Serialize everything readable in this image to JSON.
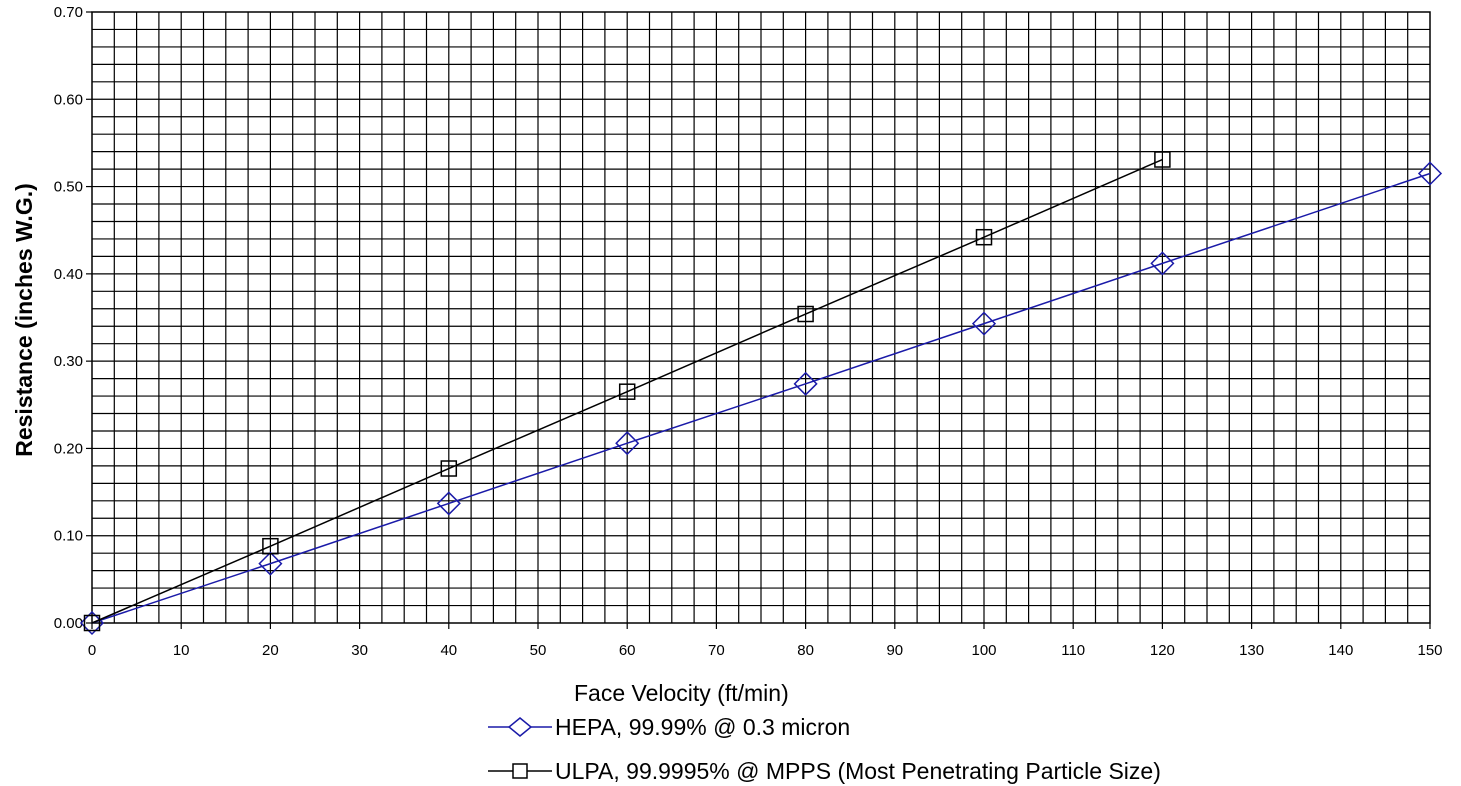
{
  "chart_data": {
    "type": "line",
    "title": "",
    "xlabel": "Face Velocity (ft/min)",
    "ylabel": "Resistance (inches W.G.)",
    "xlim": [
      0,
      150
    ],
    "ylim": [
      0,
      0.7
    ],
    "x_ticks": [
      "0",
      "10",
      "20",
      "30",
      "40",
      "50",
      "60",
      "70",
      "80",
      "90",
      "100",
      "110",
      "120",
      "130",
      "140",
      "150"
    ],
    "y_ticks": [
      "0.00",
      "0.10",
      "0.20",
      "0.30",
      "0.40",
      "0.50",
      "0.60",
      "0.70"
    ],
    "grid": true,
    "grid_minor": {
      "x_step": 2.5,
      "y_step": 0.02
    },
    "legend_position": "bottom",
    "series": [
      {
        "name": "HEPA, 99.99% @ 0.3 micron",
        "color": "#1a1aa8",
        "marker": "diamond",
        "x": [
          0,
          20,
          40,
          60,
          80,
          100,
          120,
          150
        ],
        "y": [
          0.0,
          0.068,
          0.137,
          0.206,
          0.274,
          0.343,
          0.412,
          0.515
        ]
      },
      {
        "name": "ULPA, 99.9995% @ MPPS (Most Penetrating Particle Size)",
        "color": "#000000",
        "marker": "square",
        "x": [
          0,
          20,
          40,
          60,
          80,
          100,
          120
        ],
        "y": [
          0.0,
          0.088,
          0.177,
          0.265,
          0.354,
          0.442,
          0.531
        ]
      }
    ]
  }
}
